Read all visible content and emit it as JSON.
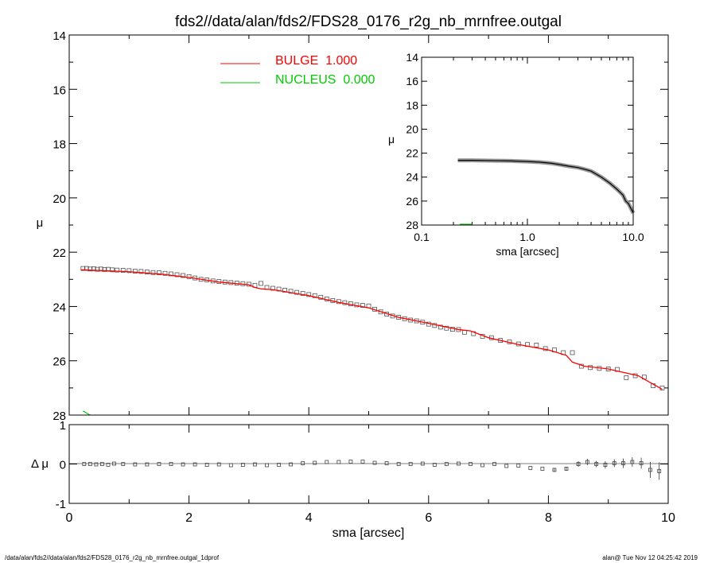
{
  "chart_data": [
    {
      "panel": "main-profile",
      "type": "line",
      "title": "fds2//data/alan/fds2/FDS28_0176_r2g_nb_mrnfree.outgal",
      "xlabel": "",
      "ylabel": "μ",
      "xlim": [
        0,
        10
      ],
      "ylim": [
        28,
        14
      ],
      "y_inverted": true,
      "y_ticks": [
        "14",
        "16",
        "18",
        "20",
        "22",
        "24",
        "26",
        "28"
      ],
      "legend": [
        {
          "label": "BULGE  1.000",
          "color": "#ff0000"
        },
        {
          "label": "NUCLEUS  0.000",
          "color": "#00cc00"
        }
      ],
      "observed_points": {
        "x": [
          0.23,
          0.29,
          0.35,
          0.41,
          0.47,
          0.53,
          0.59,
          0.65,
          0.72,
          0.8,
          0.9,
          1.0,
          1.1,
          1.2,
          1.3,
          1.4,
          1.5,
          1.6,
          1.7,
          1.8,
          1.9,
          2.0,
          2.1,
          2.2,
          2.3,
          2.4,
          2.5,
          2.6,
          2.7,
          2.8,
          2.9,
          3.0,
          3.1,
          3.2,
          3.3,
          3.4,
          3.5,
          3.6,
          3.7,
          3.8,
          3.9,
          4.0,
          4.1,
          4.2,
          4.3,
          4.4,
          4.5,
          4.6,
          4.7,
          4.8,
          4.9,
          5.0,
          5.1,
          5.2,
          5.3,
          5.4,
          5.5,
          5.6,
          5.7,
          5.8,
          5.9,
          6.0,
          6.1,
          6.2,
          6.3,
          6.4,
          6.5,
          6.6,
          6.75,
          6.9,
          7.05,
          7.2,
          7.35,
          7.5,
          7.65,
          7.8,
          7.95,
          8.1,
          8.25,
          8.4,
          8.55,
          8.7,
          8.85,
          9.0,
          9.15,
          9.3,
          9.45,
          9.6,
          9.75,
          9.9
        ],
        "y": [
          22.6,
          22.6,
          22.62,
          22.61,
          22.63,
          22.62,
          22.64,
          22.63,
          22.65,
          22.66,
          22.67,
          22.68,
          22.7,
          22.71,
          22.73,
          22.75,
          22.76,
          22.78,
          22.8,
          22.83,
          22.86,
          22.9,
          22.95,
          23.0,
          23.02,
          23.06,
          23.08,
          23.1,
          23.12,
          23.14,
          23.16,
          23.18,
          23.22,
          23.15,
          23.3,
          23.33,
          23.36,
          23.4,
          23.44,
          23.48,
          23.52,
          23.56,
          23.6,
          23.66,
          23.72,
          23.78,
          23.82,
          23.86,
          23.9,
          23.94,
          23.96,
          23.98,
          24.1,
          24.2,
          24.28,
          24.35,
          24.4,
          24.45,
          24.5,
          24.53,
          24.58,
          24.65,
          24.7,
          24.76,
          24.8,
          24.84,
          24.85,
          24.95,
          25.0,
          25.1,
          25.15,
          25.25,
          25.3,
          25.38,
          25.4,
          25.42,
          25.55,
          25.6,
          25.7,
          25.7,
          26.2,
          26.25,
          26.28,
          26.3,
          26.32,
          26.62,
          26.55,
          26.6,
          26.92,
          27.0
        ]
      },
      "model_curve": {
        "x": [
          0.2,
          0.6,
          1.0,
          1.5,
          2.0,
          2.5,
          3.0,
          3.1,
          3.2,
          3.4,
          4.0,
          4.5,
          5.0,
          5.5,
          6.0,
          6.5,
          6.7,
          7.0,
          7.5,
          8.0,
          8.3,
          8.4,
          8.6,
          9.0,
          9.3,
          9.5,
          9.7,
          9.9
        ],
        "y": [
          22.65,
          22.68,
          22.72,
          22.8,
          22.93,
          23.1,
          23.2,
          23.3,
          23.35,
          23.38,
          23.6,
          23.85,
          24.05,
          24.4,
          24.62,
          24.85,
          24.9,
          25.15,
          25.4,
          25.6,
          25.8,
          26.05,
          26.2,
          26.3,
          26.45,
          26.55,
          26.8,
          27.05
        ]
      },
      "nucleus_curve": {
        "x": [
          0.23,
          0.35
        ],
        "y": [
          27.85,
          28.0
        ]
      }
    },
    {
      "panel": "inset-log-profile",
      "type": "line",
      "xlabel": "sma [arcsec]",
      "ylabel": "μ",
      "xscale": "log",
      "xlim": [
        0.1,
        10
      ],
      "ylim": [
        28,
        14
      ],
      "y_inverted": true,
      "x_ticks": [
        "0.1",
        "1.0",
        "10.0"
      ],
      "y_ticks": [
        "14",
        "16",
        "18",
        "20",
        "22",
        "24",
        "26",
        "28"
      ],
      "profile": {
        "x": [
          0.22,
          0.3,
          0.5,
          0.7,
          1.0,
          1.3,
          1.7,
          2.0,
          2.5,
          3.0,
          3.5,
          4.0,
          5.0,
          6.0,
          7.0,
          8.0,
          8.5,
          9.0,
          9.5,
          10.0
        ],
        "y": [
          22.6,
          22.6,
          22.63,
          22.65,
          22.7,
          22.75,
          22.85,
          22.95,
          23.1,
          23.2,
          23.35,
          23.5,
          24.0,
          24.5,
          25.0,
          25.5,
          26.0,
          26.2,
          26.6,
          27.0
        ]
      },
      "nucleus_curve": {
        "x": [
          0.23,
          0.3
        ],
        "y": [
          28.0,
          28.0
        ]
      }
    },
    {
      "panel": "residuals",
      "type": "scatter",
      "xlabel": "sma [arcsec]",
      "ylabel": "Δ μ",
      "xlim": [
        0,
        10
      ],
      "ylim": [
        -1,
        1
      ],
      "x_ticks": [
        "0",
        "2",
        "4",
        "6",
        "8",
        "10"
      ],
      "y_ticks": [
        "1",
        "0",
        "-1"
      ],
      "x": [
        0.25,
        0.35,
        0.45,
        0.55,
        0.65,
        0.75,
        0.9,
        1.1,
        1.3,
        1.5,
        1.7,
        1.9,
        2.1,
        2.3,
        2.5,
        2.7,
        2.9,
        3.1,
        3.3,
        3.5,
        3.7,
        3.9,
        4.1,
        4.3,
        4.5,
        4.7,
        4.9,
        5.1,
        5.3,
        5.5,
        5.7,
        5.9,
        6.1,
        6.3,
        6.5,
        6.7,
        6.9,
        7.1,
        7.3,
        7.5,
        7.7,
        7.9,
        8.1,
        8.3,
        8.5,
        8.65,
        8.8,
        8.95,
        9.1,
        9.25,
        9.4,
        9.55,
        9.7,
        9.85
      ],
      "y": [
        0.0,
        0.0,
        -0.01,
        0.0,
        -0.02,
        0.01,
        0.0,
        -0.01,
        -0.01,
        0.0,
        0.0,
        -0.01,
        -0.01,
        -0.02,
        -0.01,
        -0.03,
        -0.02,
        -0.01,
        -0.03,
        -0.02,
        -0.01,
        0.02,
        0.03,
        0.05,
        0.05,
        0.06,
        0.06,
        0.03,
        0.02,
        0.0,
        0.0,
        0.01,
        -0.02,
        0.0,
        0.01,
        0.0,
        -0.03,
        0.0,
        -0.05,
        -0.04,
        -0.1,
        -0.12,
        -0.15,
        -0.12,
        0.0,
        0.05,
        0.0,
        -0.02,
        0.02,
        0.02,
        0.05,
        0.02,
        -0.15,
        -0.18
      ],
      "err": [
        0.01,
        0.01,
        0.01,
        0.01,
        0.01,
        0.01,
        0.01,
        0.01,
        0.01,
        0.01,
        0.01,
        0.01,
        0.01,
        0.01,
        0.01,
        0.01,
        0.01,
        0.02,
        0.02,
        0.02,
        0.02,
        0.02,
        0.02,
        0.02,
        0.02,
        0.02,
        0.02,
        0.02,
        0.02,
        0.02,
        0.02,
        0.02,
        0.02,
        0.02,
        0.02,
        0.02,
        0.03,
        0.03,
        0.03,
        0.03,
        0.04,
        0.04,
        0.05,
        0.05,
        0.07,
        0.08,
        0.08,
        0.09,
        0.1,
        0.12,
        0.12,
        0.14,
        0.2,
        0.22
      ],
      "zero_line": 0
    }
  ],
  "footer": {
    "left": "/data/alan/fds2//data/alan/fds2/FDS28_0176_r2g_nb_mrnfree.outgal_1dprof",
    "right": "alan@  Tue Nov 12 04:25:42 2019"
  }
}
